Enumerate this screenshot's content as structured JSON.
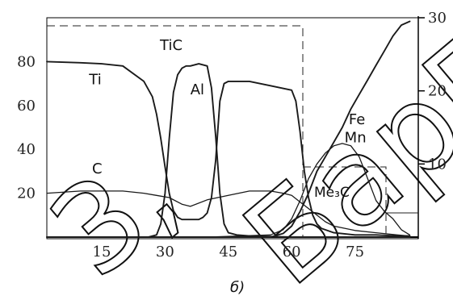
{
  "chart_data": {
    "type": "line",
    "caption": "б)",
    "x_ticks": [
      "15",
      "30",
      "45",
      "60",
      "75"
    ],
    "y_left_ticks": [
      "20",
      "40",
      "60",
      "80"
    ],
    "y_right_ticks": [
      "10",
      "20",
      "30"
    ],
    "xlim": [
      2,
      90
    ],
    "ylim_left": [
      0,
      100
    ],
    "ylim_right": [
      0,
      30
    ],
    "region_labels": [
      {
        "id": "tic",
        "text": "TiC"
      },
      {
        "id": "me3c",
        "text": "Me₃C"
      }
    ],
    "series": [
      {
        "name": "Ti",
        "axis": "left",
        "x": [
          2,
          10,
          15,
          20,
          25,
          27,
          28,
          29,
          30,
          31,
          32,
          33,
          34,
          35,
          36,
          37,
          38,
          39,
          40,
          41,
          42,
          43,
          44,
          45,
          50,
          55,
          60,
          61,
          62,
          63,
          64,
          65,
          66,
          67,
          70,
          75,
          80,
          85,
          88
        ],
        "y": [
          80,
          79.5,
          79,
          78,
          71,
          64,
          56,
          45,
          32,
          20,
          12,
          9,
          8,
          8,
          8,
          8,
          8,
          9,
          11,
          18,
          35,
          62,
          70,
          71,
          71,
          69,
          67,
          62,
          48,
          30,
          18,
          10,
          6,
          4,
          2,
          1,
          1,
          0.5,
          0.5
        ]
      },
      {
        "name": "Al",
        "axis": "left",
        "x": [
          2,
          20,
          26,
          28,
          29,
          30,
          31,
          32,
          33,
          34,
          35,
          36,
          38,
          40,
          41,
          42,
          43,
          44,
          45,
          47,
          50,
          60,
          70,
          80,
          88
        ],
        "y": [
          0,
          0,
          0,
          1,
          6,
          20,
          45,
          66,
          74,
          77,
          78,
          78,
          79,
          78,
          68,
          46,
          20,
          6,
          2,
          1,
          0.5,
          0,
          0,
          0,
          0
        ]
      },
      {
        "name": "C",
        "axis": "left",
        "x": [
          2,
          10,
          15,
          20,
          25,
          28,
          31,
          34,
          36,
          40,
          45,
          50,
          55,
          58,
          60,
          62,
          64,
          66,
          68,
          70,
          75,
          80,
          85,
          88
        ],
        "y": [
          20,
          21,
          21,
          21,
          20,
          19,
          18,
          15,
          14,
          17,
          19,
          21,
          21,
          20,
          19,
          16,
          13,
          10,
          7,
          5,
          3,
          2,
          1,
          0.5
        ]
      },
      {
        "name": "Fe",
        "axis": "right",
        "x": [
          2,
          30,
          55,
          58,
          60,
          62,
          64,
          66,
          68,
          70,
          72,
          74,
          76,
          78,
          80,
          82,
          84,
          86,
          88
        ],
        "y": [
          0,
          0,
          0,
          0.5,
          1.5,
          3.5,
          6,
          9,
          11,
          13,
          15,
          17.5,
          19.5,
          21.5,
          23.5,
          25.5,
          27.5,
          29,
          29.5
        ]
      },
      {
        "name": "Mn",
        "axis": "right",
        "x": [
          2,
          40,
          55,
          58,
          60,
          62,
          64,
          66,
          68,
          70,
          72,
          74,
          76,
          78,
          80,
          82,
          84,
          86,
          88
        ],
        "y": [
          0,
          0,
          0.3,
          1,
          2.5,
          5,
          8,
          10,
          11.5,
          12.5,
          12.8,
          12.5,
          11,
          8,
          5,
          3.5,
          2.5,
          1,
          0.3
        ]
      }
    ]
  }
}
